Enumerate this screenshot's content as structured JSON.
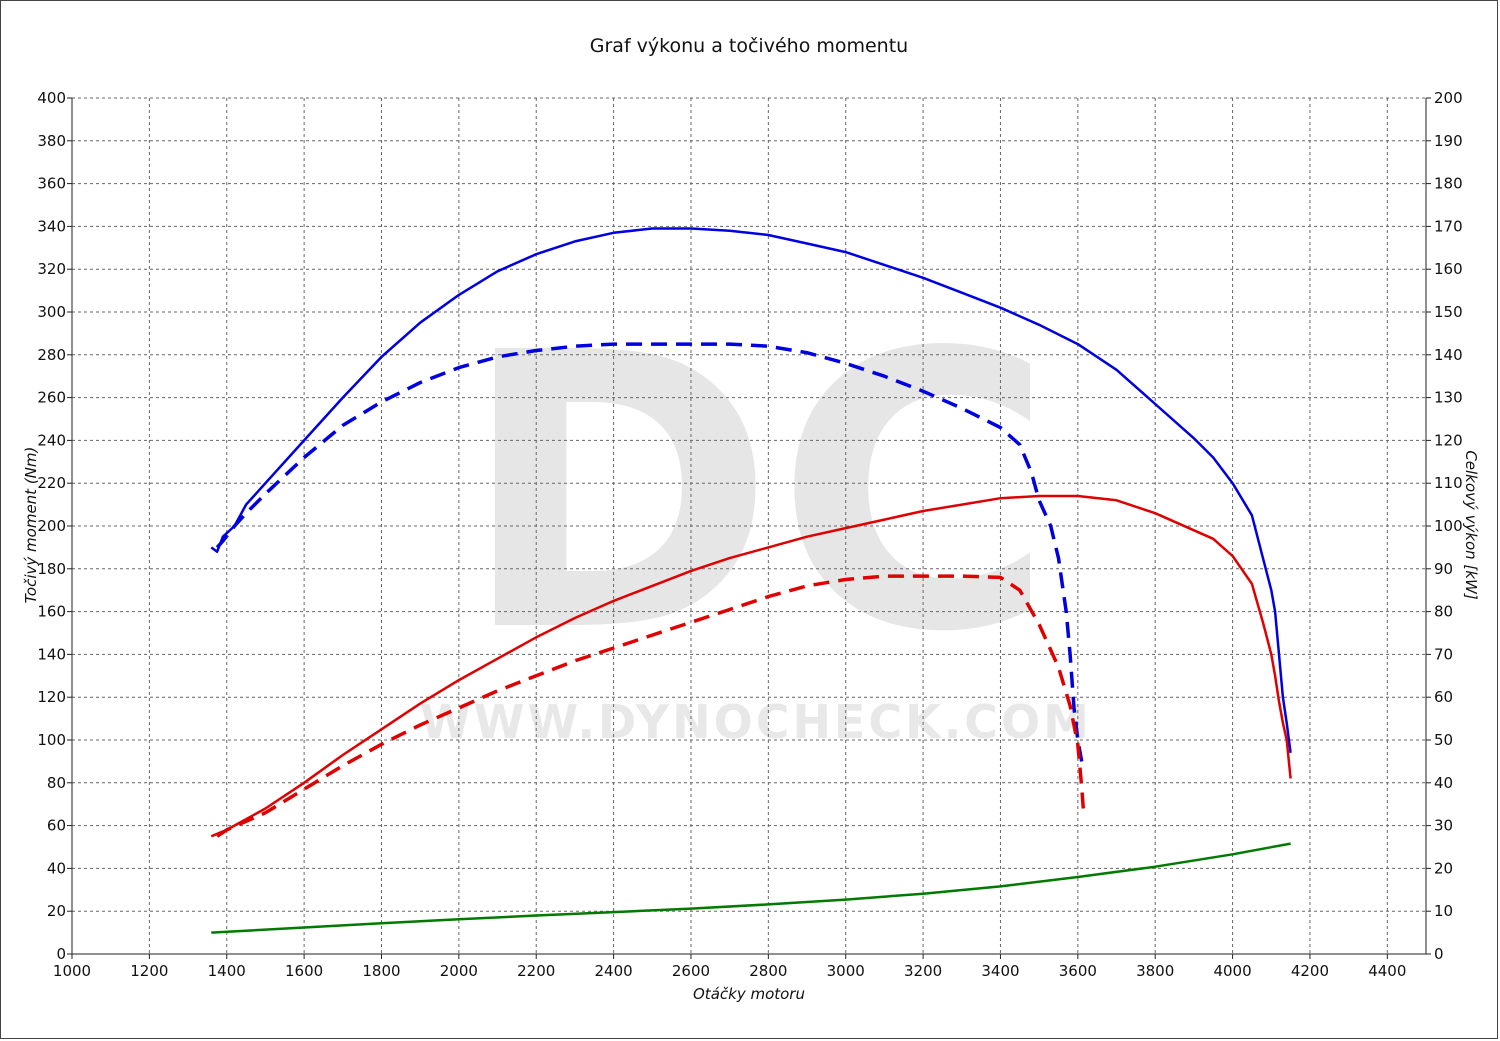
{
  "watermark": {
    "logo": "DC",
    "url": "WWW.DYNOCHECK.COM"
  },
  "chart_data": {
    "type": "line",
    "title": "Graf výkonu a točivého momentu",
    "xlabel": "Otáčky motoru",
    "ylabel_left": "Točivý moment (Nm)",
    "ylabel_right": "Celkový výkon [kW]",
    "xlim": [
      1000,
      4500
    ],
    "ylim_left": [
      0,
      400
    ],
    "ylim_right": [
      0,
      200
    ],
    "x_ticks": [
      1000,
      1200,
      1400,
      1600,
      1800,
      2000,
      2200,
      2400,
      2600,
      2800,
      3000,
      3200,
      3400,
      3600,
      3800,
      4000,
      4200,
      4400
    ],
    "y_left_ticks": [
      0,
      20,
      40,
      60,
      80,
      100,
      120,
      140,
      160,
      180,
      200,
      220,
      240,
      260,
      280,
      300,
      320,
      340,
      360,
      380,
      400
    ],
    "y_right_ticks": [
      0,
      10,
      20,
      30,
      40,
      50,
      60,
      70,
      80,
      90,
      100,
      110,
      120,
      130,
      140,
      150,
      160,
      170,
      180,
      190,
      200
    ],
    "grid": true,
    "colors": {
      "blue": "#0000e0",
      "red": "#e00000",
      "green": "#007a00"
    },
    "series": [
      {
        "axis": "left",
        "color": "blue",
        "dashed": false,
        "points": [
          [
            1360,
            190
          ],
          [
            1375,
            188
          ],
          [
            1390,
            195
          ],
          [
            1420,
            200
          ],
          [
            1450,
            210
          ],
          [
            1500,
            220
          ],
          [
            1600,
            240
          ],
          [
            1700,
            260
          ],
          [
            1800,
            279
          ],
          [
            1900,
            295
          ],
          [
            2000,
            308
          ],
          [
            2100,
            319
          ],
          [
            2200,
            327
          ],
          [
            2300,
            333
          ],
          [
            2400,
            337
          ],
          [
            2500,
            339
          ],
          [
            2600,
            339
          ],
          [
            2700,
            338
          ],
          [
            2800,
            336
          ],
          [
            2900,
            332
          ],
          [
            3000,
            328
          ],
          [
            3100,
            322
          ],
          [
            3200,
            316
          ],
          [
            3300,
            309
          ],
          [
            3400,
            302
          ],
          [
            3500,
            294
          ],
          [
            3600,
            285
          ],
          [
            3700,
            273
          ],
          [
            3800,
            257
          ],
          [
            3900,
            241
          ],
          [
            3950,
            232
          ],
          [
            4000,
            220
          ],
          [
            4050,
            205
          ],
          [
            4080,
            184
          ],
          [
            4100,
            170
          ],
          [
            4110,
            160
          ],
          [
            4120,
            140
          ],
          [
            4130,
            120
          ],
          [
            4140,
            108
          ],
          [
            4150,
            94
          ]
        ]
      },
      {
        "axis": "left",
        "color": "blue",
        "dashed": true,
        "points": [
          [
            1375,
            190
          ],
          [
            1390,
            193
          ],
          [
            1420,
            200
          ],
          [
            1450,
            206
          ],
          [
            1500,
            215
          ],
          [
            1600,
            232
          ],
          [
            1700,
            247
          ],
          [
            1800,
            258
          ],
          [
            1900,
            267
          ],
          [
            2000,
            274
          ],
          [
            2100,
            279
          ],
          [
            2200,
            282
          ],
          [
            2300,
            284
          ],
          [
            2400,
            285
          ],
          [
            2500,
            285
          ],
          [
            2600,
            285
          ],
          [
            2700,
            285
          ],
          [
            2800,
            284
          ],
          [
            2900,
            281
          ],
          [
            3000,
            276
          ],
          [
            3100,
            270
          ],
          [
            3200,
            263
          ],
          [
            3300,
            255
          ],
          [
            3400,
            246
          ],
          [
            3450,
            238
          ],
          [
            3480,
            225
          ],
          [
            3500,
            212
          ],
          [
            3530,
            200
          ],
          [
            3550,
            185
          ],
          [
            3570,
            160
          ],
          [
            3580,
            140
          ],
          [
            3590,
            115
          ],
          [
            3600,
            100
          ],
          [
            3610,
            90
          ]
        ]
      },
      {
        "axis": "right",
        "color": "red",
        "dashed": false,
        "points": [
          [
            1360,
            27.5
          ],
          [
            1400,
            29
          ],
          [
            1500,
            34
          ],
          [
            1600,
            40
          ],
          [
            1700,
            46.5
          ],
          [
            1800,
            52.5
          ],
          [
            1900,
            58.5
          ],
          [
            2000,
            64
          ],
          [
            2100,
            69
          ],
          [
            2200,
            74
          ],
          [
            2300,
            78.5
          ],
          [
            2400,
            82.5
          ],
          [
            2500,
            86
          ],
          [
            2600,
            89.5
          ],
          [
            2700,
            92.5
          ],
          [
            2800,
            95
          ],
          [
            2900,
            97.5
          ],
          [
            3000,
            99.5
          ],
          [
            3100,
            101.5
          ],
          [
            3200,
            103.5
          ],
          [
            3300,
            105
          ],
          [
            3400,
            106.5
          ],
          [
            3500,
            107
          ],
          [
            3600,
            107
          ],
          [
            3700,
            106
          ],
          [
            3800,
            103
          ],
          [
            3900,
            99
          ],
          [
            3950,
            97
          ],
          [
            4000,
            93
          ],
          [
            4050,
            86.5
          ],
          [
            4080,
            77
          ],
          [
            4100,
            70
          ],
          [
            4110,
            65
          ],
          [
            4120,
            59
          ],
          [
            4130,
            54
          ],
          [
            4140,
            50
          ],
          [
            4150,
            41
          ]
        ]
      },
      {
        "axis": "right",
        "color": "red",
        "dashed": true,
        "points": [
          [
            1375,
            27.5
          ],
          [
            1400,
            29
          ],
          [
            1500,
            33
          ],
          [
            1600,
            38.5
          ],
          [
            1700,
            44
          ],
          [
            1800,
            49
          ],
          [
            1900,
            53.5
          ],
          [
            2000,
            57.5
          ],
          [
            2100,
            61.5
          ],
          [
            2200,
            65
          ],
          [
            2300,
            68.5
          ],
          [
            2400,
            71.5
          ],
          [
            2500,
            74.5
          ],
          [
            2600,
            77.5
          ],
          [
            2700,
            80.5
          ],
          [
            2800,
            83.5
          ],
          [
            2900,
            86
          ],
          [
            3000,
            87.5
          ],
          [
            3100,
            88.3
          ],
          [
            3200,
            88.3
          ],
          [
            3300,
            88.3
          ],
          [
            3400,
            88
          ],
          [
            3450,
            85
          ],
          [
            3500,
            77
          ],
          [
            3550,
            67
          ],
          [
            3580,
            58
          ],
          [
            3600,
            49
          ],
          [
            3610,
            39
          ],
          [
            3615,
            33
          ]
        ]
      },
      {
        "axis": "right",
        "color": "green",
        "dashed": false,
        "points": [
          [
            1360,
            5
          ],
          [
            1600,
            6.2
          ],
          [
            1800,
            7.2
          ],
          [
            2000,
            8.1
          ],
          [
            2200,
            9
          ],
          [
            2400,
            9.8
          ],
          [
            2600,
            10.6
          ],
          [
            2800,
            11.6
          ],
          [
            3000,
            12.7
          ],
          [
            3200,
            14.1
          ],
          [
            3400,
            15.8
          ],
          [
            3600,
            18
          ],
          [
            3800,
            20.4
          ],
          [
            4000,
            23.3
          ],
          [
            4150,
            25.8
          ]
        ]
      }
    ]
  }
}
